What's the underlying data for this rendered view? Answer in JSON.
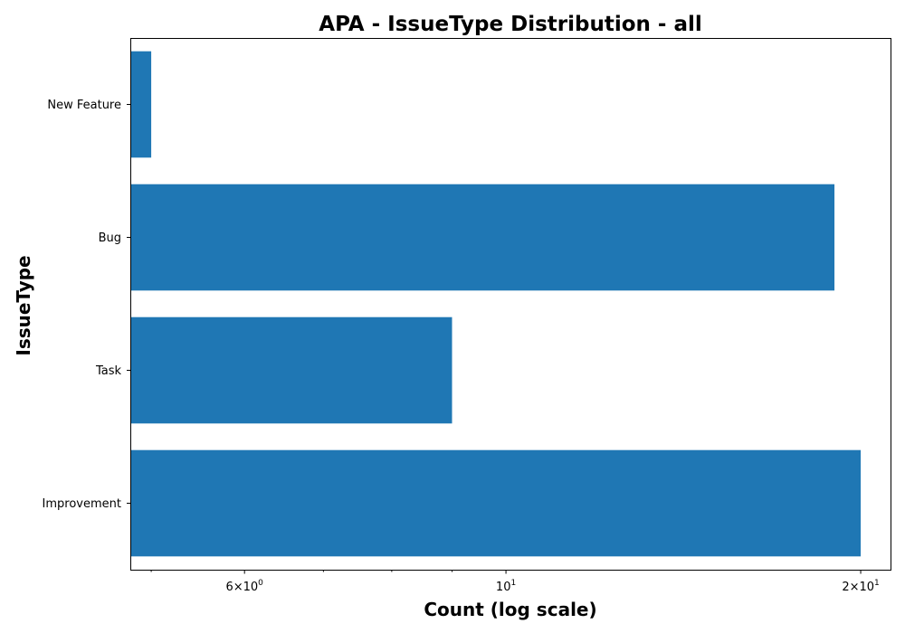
{
  "chart_data": {
    "type": "bar",
    "orientation": "horizontal",
    "title": "APA - IssueType Distribution - all",
    "xlabel": "Count (log scale)",
    "ylabel": "IssueType",
    "x_scale": "log",
    "xlim": [
      4.8,
      21.2
    ],
    "categories": [
      "New Feature",
      "Bug",
      "Task",
      "Improvement"
    ],
    "values": [
      5,
      19,
      9,
      20
    ],
    "bar_color": "#1f77b4",
    "x_ticks": [
      {
        "value": 6,
        "base": "6×10",
        "exp": "0"
      },
      {
        "value": 10,
        "base": "10",
        "exp": "1"
      },
      {
        "value": 20,
        "base": "2×10",
        "exp": "1"
      }
    ],
    "x_minor_ticks": [
      5,
      7,
      8,
      9
    ],
    "grid": false,
    "legend": "none"
  }
}
